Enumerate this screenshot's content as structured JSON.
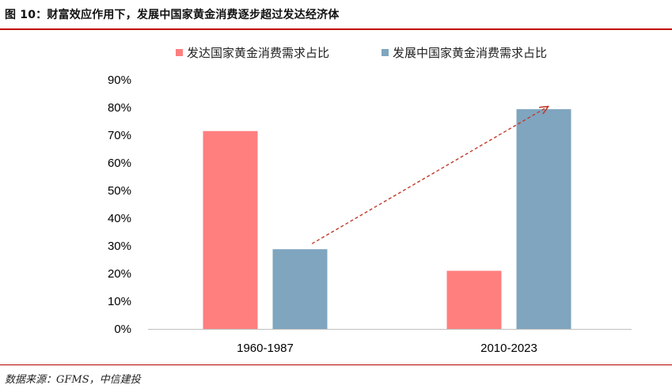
{
  "title": "图 10：财富效应作用下，发展中国家黄金消费逐步超过发达经济体",
  "source": "数据来源：GFMS，中信建投",
  "colors": {
    "developed": "#ff7f7f",
    "developing": "#7fa5bf",
    "arrow": "#c0392b",
    "rule": "#c00000"
  },
  "chart_data": {
    "type": "bar",
    "categories": [
      "1960-1987",
      "2010-2023"
    ],
    "series": [
      {
        "name": "发达国家黄金消费需求占比",
        "values": [
          71.5,
          21
        ]
      },
      {
        "name": "发展中国家黄金消费需求占比",
        "values": [
          28.8,
          79.4
        ]
      }
    ],
    "ylim": [
      0,
      90
    ],
    "yticks": [
      "0%",
      "10%",
      "20%",
      "30%",
      "40%",
      "50%",
      "60%",
      "70%",
      "80%",
      "90%"
    ],
    "legend_position": "top",
    "grid": false,
    "annotation": "dashed arrow rising from the 1960-1987 developing bar to the 2010-2023 developing bar"
  }
}
